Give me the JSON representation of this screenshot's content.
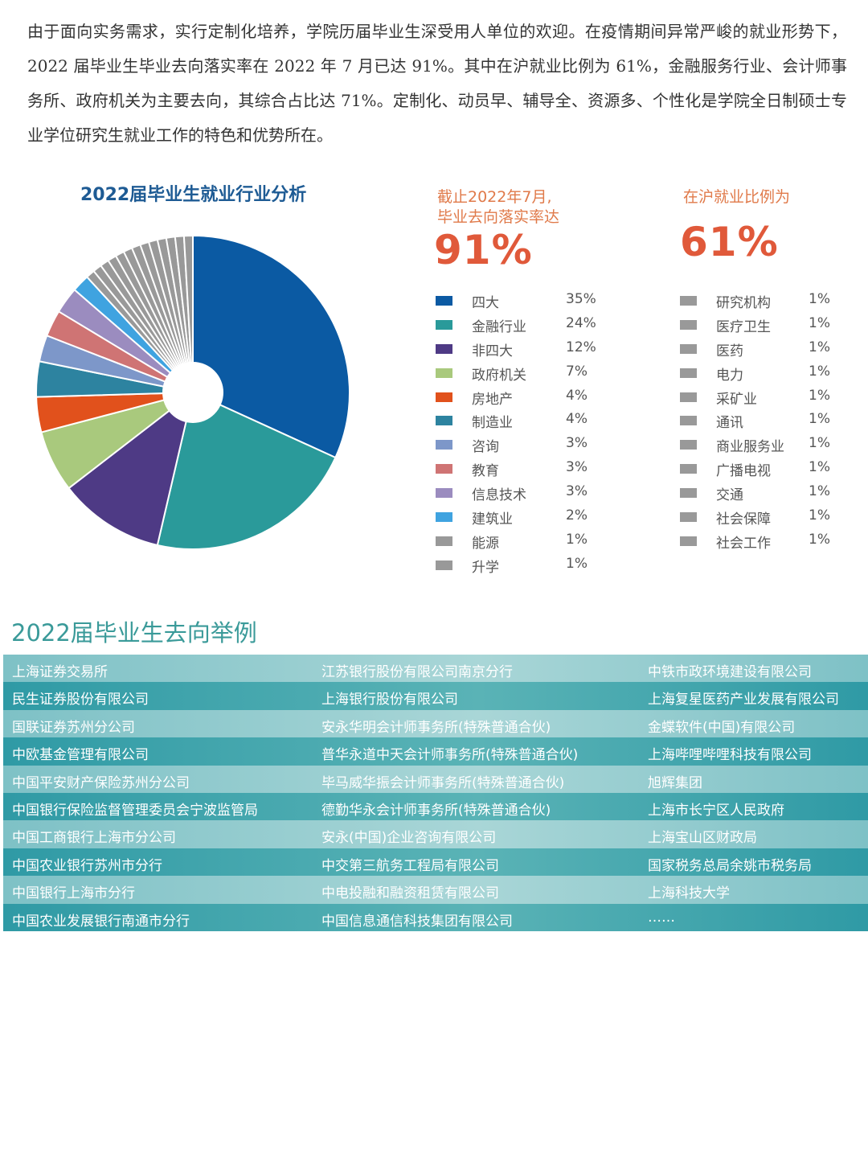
{
  "intro": {
    "text": "由于面向实务需求，实行定制化培养，学院历届毕业生深受用人单位的欢迎。在疫情期间异常严峻的就业形势下，2022 届毕业生毕业去向落实率在 2022 年 7 月已达 91%。其中在沪就业比例为 61%，金融服务行业、会计师事务所、政府机关为主要去向，其综合占比达 71%。定制化、动员早、辅导全、资源多、个性化是学院全日制硕士专业学位研究生就业工作的特色和优势所在。"
  },
  "stats": {
    "rate_caption": "截止2022年7月,\n毕业去向落实率达",
    "rate_value": "91%",
    "shanghai_caption": "在沪就业比例为",
    "shanghai_value": "61%"
  },
  "chart_data": {
    "type": "pie",
    "title": "2022届毕业生就业行业分析",
    "donut": true,
    "slices": [
      {
        "label": "四大",
        "value": 35,
        "display": "35%",
        "color": "#0b5aa3"
      },
      {
        "label": "金融行业",
        "value": 24,
        "display": "24%",
        "color": "#2a9a9a"
      },
      {
        "label": "非四大",
        "value": 12,
        "display": "12%",
        "color": "#4e3a85"
      },
      {
        "label": "政府机关",
        "value": 7,
        "display": "7%",
        "color": "#a9c97d"
      },
      {
        "label": "房地产",
        "value": 4,
        "display": "4%",
        "color": "#e1511c"
      },
      {
        "label": "制造业",
        "value": 4,
        "display": "4%",
        "color": "#2d83a0"
      },
      {
        "label": "咨询",
        "value": 3,
        "display": "3%",
        "color": "#7d97c9"
      },
      {
        "label": "教育",
        "value": 3,
        "display": "3%",
        "color": "#cf7474"
      },
      {
        "label": "信息技术",
        "value": 3,
        "display": "3%",
        "color": "#9b8cbf"
      },
      {
        "label": "建筑业",
        "value": 2,
        "display": "2%",
        "color": "#3fa3e0"
      },
      {
        "label": "能源",
        "value": 1,
        "display": "1%",
        "color": "#999999"
      },
      {
        "label": "升学",
        "value": 1,
        "display": "1%",
        "color": "#999999"
      },
      {
        "label": "研究机构",
        "value": 1,
        "display": "1%",
        "color": "#999999"
      },
      {
        "label": "医疗卫生",
        "value": 1,
        "display": "1%",
        "color": "#999999"
      },
      {
        "label": "医药",
        "value": 1,
        "display": "1%",
        "color": "#999999"
      },
      {
        "label": "电力",
        "value": 1,
        "display": "1%",
        "color": "#999999"
      },
      {
        "label": "采矿业",
        "value": 1,
        "display": "1%",
        "color": "#999999"
      },
      {
        "label": "通讯",
        "value": 1,
        "display": "1%",
        "color": "#999999"
      },
      {
        "label": "商业服务业",
        "value": 1,
        "display": "1%",
        "color": "#999999"
      },
      {
        "label": "广播电视",
        "value": 1,
        "display": "1%",
        "color": "#999999"
      },
      {
        "label": "交通",
        "value": 1,
        "display": "1%",
        "color": "#999999"
      },
      {
        "label": "社会保障",
        "value": 1,
        "display": "1%",
        "color": "#999999"
      },
      {
        "label": "社会工作",
        "value": 1,
        "display": "1%",
        "color": "#999999"
      }
    ]
  },
  "destinations": {
    "title": "2022届毕业生去向举例",
    "rows": [
      [
        "上海证券交易所",
        "江苏银行股份有限公司南京分行",
        "中铁市政环境建设有限公司"
      ],
      [
        "民生证券股份有限公司",
        "上海银行股份有限公司",
        "上海复星医药产业发展有限公司"
      ],
      [
        "国联证券苏州分公司",
        "安永华明会计师事务所(特殊普通合伙)",
        "金蝶软件(中国)有限公司"
      ],
      [
        "中欧基金管理有限公司",
        "普华永道中天会计师事务所(特殊普通合伙)",
        "上海哔哩哔哩科技有限公司"
      ],
      [
        "中国平安财产保险苏州分公司",
        "毕马威华振会计师事务所(特殊普通合伙)",
        "旭辉集团"
      ],
      [
        "中国银行保险监督管理委员会宁波监管局",
        "德勤华永会计师事务所(特殊普通合伙)",
        "上海市长宁区人民政府"
      ],
      [
        "中国工商银行上海市分公司",
        "安永(中国)企业咨询有限公司",
        "上海宝山区财政局"
      ],
      [
        "中国农业银行苏州市分行",
        "中交第三航务工程局有限公司",
        "国家税务总局余姚市税务局"
      ],
      [
        "中国银行上海市分行",
        "中电投融和融资租赁有限公司",
        "上海科技大学"
      ],
      [
        "中国农业发展银行南通市分行",
        "中国信息通信科技集团有限公司",
        "……"
      ]
    ]
  }
}
